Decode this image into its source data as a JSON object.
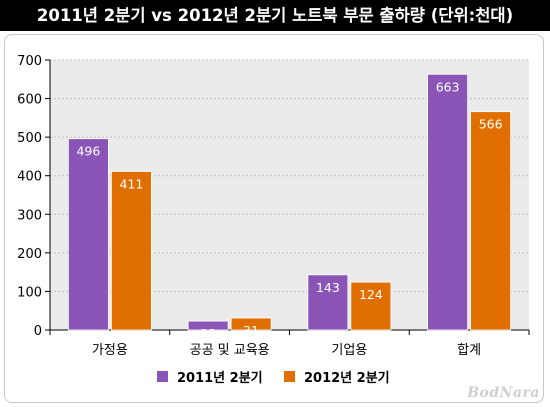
{
  "title": "2011년 2분기 vs 2012년 2분기 노트북 부문 출하량 (단위:천대)",
  "watermark": "BodNara",
  "colors": {
    "series1": "#8a55b7",
    "series2": "#e06f00",
    "plot_background": "#ebebeb",
    "gridline": "#bfbfbf"
  },
  "chart_data": {
    "type": "bar",
    "title": "2011년 2분기 vs 2012년 2분기 노트북 부문 출하량 (단위:천대)",
    "categories": [
      "가정용",
      "공공 및 교육용",
      "기업용",
      "합계"
    ],
    "series": [
      {
        "name": "2011년 2분기",
        "values": [
          496,
          23,
          143,
          663
        ]
      },
      {
        "name": "2012년 2분기",
        "values": [
          411,
          31,
          124,
          566
        ]
      }
    ],
    "ylim": [
      0,
      700
    ],
    "yticks": [
      0,
      100,
      200,
      300,
      400,
      500,
      600,
      700
    ],
    "grid": true,
    "legend_position": "bottom",
    "data_labels": true
  }
}
